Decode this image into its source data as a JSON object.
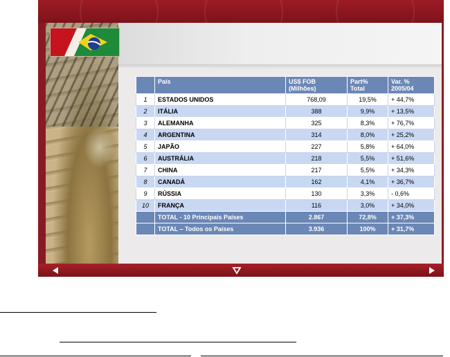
{
  "table": {
    "headers": {
      "country": "País",
      "value_line1": "US$ FOB",
      "value_line2": "(Milhões)",
      "share_line1": "Part%",
      "share_line2": "Total",
      "var_line1": "Var. %",
      "var_line2": "2005/04"
    },
    "rows": [
      {
        "rank": "1",
        "country": "ESTADOS UNIDOS",
        "value": "768,09",
        "share": "19,5%",
        "var": "+ 44,7%"
      },
      {
        "rank": "2",
        "country": "ITÁLIA",
        "value": "388",
        "share": "9,9%",
        "var": "+ 13,5%"
      },
      {
        "rank": "3",
        "country": "ALEMANHA",
        "value": "325",
        "share": "8,3%",
        "var": "+ 76,7%"
      },
      {
        "rank": "4",
        "country": "ARGENTINA",
        "value": "314",
        "share": "8,0%",
        "var": "+ 25,2%"
      },
      {
        "rank": "5",
        "country": "JAPÃO",
        "value": "227",
        "share": "5,8%",
        "var": "+ 64,0%"
      },
      {
        "rank": "6",
        "country": "AUSTRÁLIA",
        "value": "218",
        "share": "5,5%",
        "var": "+ 51,6%"
      },
      {
        "rank": "7",
        "country": "CHINA",
        "value": "217",
        "share": "5,5%",
        "var": "+ 34,3%"
      },
      {
        "rank": "8",
        "country": "CANADÁ",
        "value": "162",
        "share": "4,1%",
        "var": "+ 36,7%"
      },
      {
        "rank": "9",
        "country": "RÚSSIA",
        "value": "130",
        "share": "3,3%",
        "var": "- 0,6%"
      },
      {
        "rank": "10",
        "country": "FRANÇA",
        "value": "116",
        "share": "3,0%",
        "var": "+ 34,0%"
      }
    ],
    "totals": [
      {
        "label": "TOTAL - 10 Principais Países",
        "value": "2.867",
        "share": "72,8%",
        "var": "+ 37,3%"
      },
      {
        "label": "TOTAL – Todos os Países",
        "value": "3.936",
        "share": "100%",
        "var": "+ 31,7%"
      }
    ]
  },
  "navigation": {
    "prev_icon": "triangle-left-icon",
    "down_icon": "triangle-down-icon",
    "next_icon": "triangle-right-icon"
  },
  "colors": {
    "frame": "#8a1a22",
    "table_header": "#6b87b5",
    "row_alt": "#c8d8f3"
  }
}
